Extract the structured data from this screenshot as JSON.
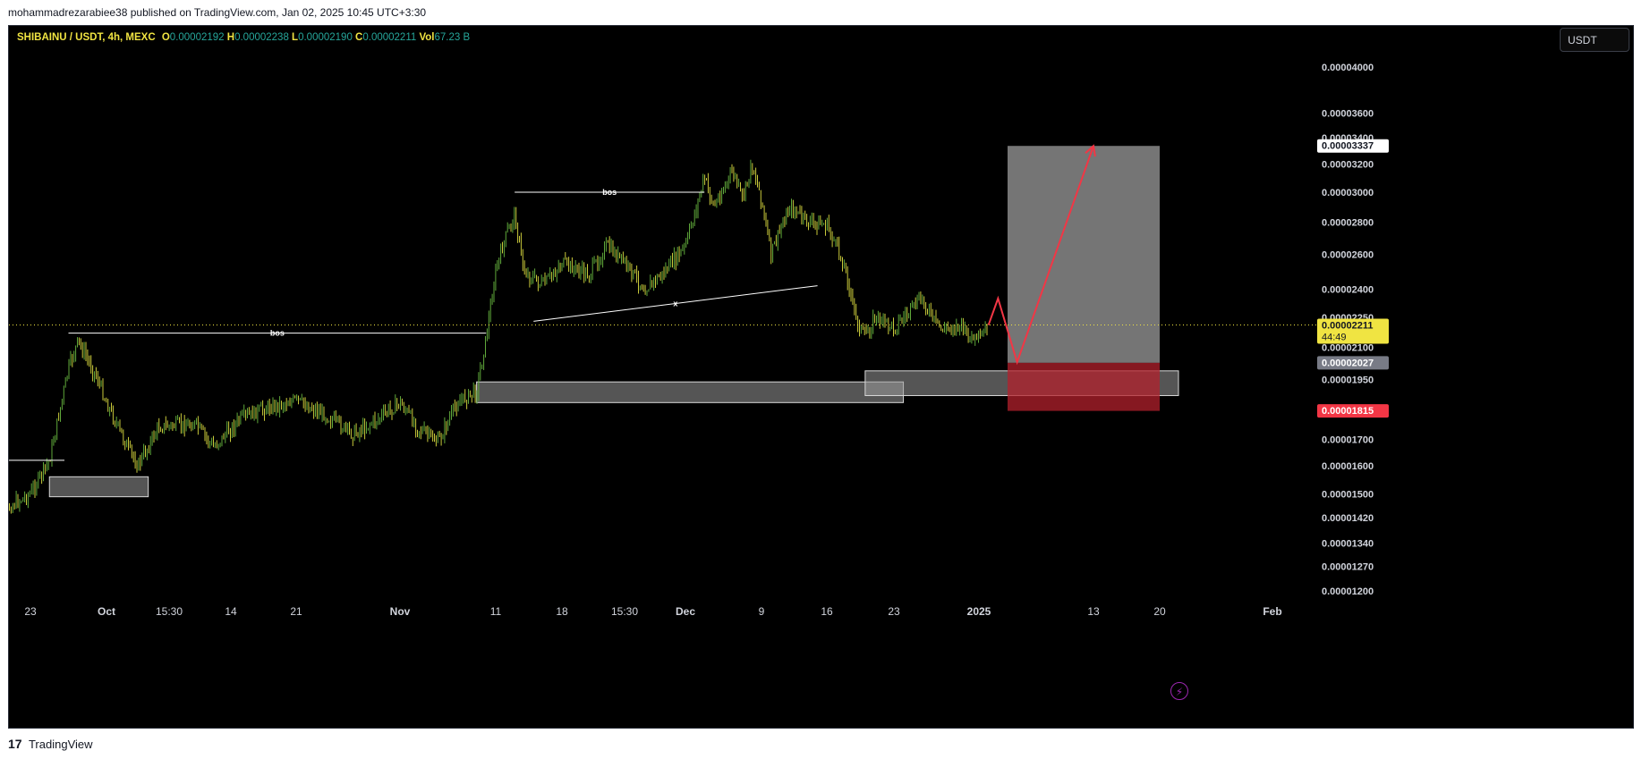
{
  "header": {
    "publish_line": "mohammadrezarabiee38 published on TradingView.com, Jan 02, 2025 10:45 UTC+3:30"
  },
  "legend": {
    "symbol": "SHIBAINU / USDT, 4h, MEXC",
    "o_label": "O",
    "o": "0.00002192",
    "h_label": "H",
    "h": "0.00002238",
    "l_label": "L",
    "l": "0.00002190",
    "c_label": "C",
    "c": "0.00002211",
    "vol_label": "Vol",
    "vol": "67.23 B"
  },
  "toolbar": {
    "currency": "USDT"
  },
  "footer": {
    "logo": "17",
    "brand": "TradingView"
  },
  "colors": {
    "background": "#000000",
    "candle": "#c9c93a",
    "candle_up": "#5fa83a",
    "current_price": "#f0e442",
    "stop_loss": "#f23645",
    "target_zone": "#8a8a8a",
    "arrow": "#f23645"
  },
  "icons": {
    "lightning": "lightning-icon",
    "logo": "tradingview-logo-icon"
  },
  "chart_data": {
    "type": "candlestick",
    "symbol": "SHIBAINU / USDT",
    "timeframe": "4h",
    "exchange": "MEXC",
    "x_ticks": [
      "23",
      "Oct",
      "15:30",
      "14",
      "21",
      "Nov",
      "11",
      "18",
      "15:30",
      "Dec",
      "9",
      "16",
      "23",
      "2025",
      "13",
      "20",
      "Feb"
    ],
    "x_dates": [
      "2024-09-23",
      "2024-10-01",
      "2024-10-07",
      "2024-10-14",
      "2024-10-21",
      "2024-11-01",
      "2024-11-11",
      "2024-11-18",
      "2024-11-25",
      "2024-12-01",
      "2024-12-09",
      "2024-12-16",
      "2024-12-23",
      "2025-01-01",
      "2025-01-13",
      "2025-01-20",
      "2025-02-01"
    ],
    "y_ticks": [
      "0.00004000",
      "0.00003600",
      "0.00003400",
      "0.00003200",
      "0.00003000",
      "0.00002800",
      "0.00002600",
      "0.00002400",
      "0.00002250",
      "0.00002100",
      "0.00001950",
      "0.00001700",
      "0.00001600",
      "0.00001500",
      "0.00001420",
      "0.00001340",
      "0.00001270",
      "0.00001200"
    ],
    "y_scale": "log",
    "price_series": [
      {
        "date": "2024-09-19",
        "close": 1.4e-05
      },
      {
        "date": "2024-09-21",
        "close": 1.46e-05
      },
      {
        "date": "2024-09-23",
        "close": 1.5e-05
      },
      {
        "date": "2024-09-25",
        "close": 1.62e-05
      },
      {
        "date": "2024-09-27",
        "close": 2e-05
      },
      {
        "date": "2024-09-28",
        "close": 2.13e-05
      },
      {
        "date": "2024-09-30",
        "close": 1.96e-05
      },
      {
        "date": "2024-10-01",
        "close": 1.85e-05
      },
      {
        "date": "2024-10-03",
        "close": 1.67e-05
      },
      {
        "date": "2024-10-04",
        "close": 1.6e-05
      },
      {
        "date": "2024-10-06",
        "close": 1.75e-05
      },
      {
        "date": "2024-10-10",
        "close": 1.76e-05
      },
      {
        "date": "2024-10-12",
        "close": 1.67e-05
      },
      {
        "date": "2024-10-15",
        "close": 1.78e-05
      },
      {
        "date": "2024-10-18",
        "close": 1.83e-05
      },
      {
        "date": "2024-10-21",
        "close": 1.86e-05
      },
      {
        "date": "2024-10-24",
        "close": 1.8e-05
      },
      {
        "date": "2024-10-27",
        "close": 1.72e-05
      },
      {
        "date": "2024-10-30",
        "close": 1.79e-05
      },
      {
        "date": "2024-11-01",
        "close": 1.85e-05
      },
      {
        "date": "2024-11-03",
        "close": 1.74e-05
      },
      {
        "date": "2024-11-05",
        "close": 1.69e-05
      },
      {
        "date": "2024-11-07",
        "close": 1.85e-05
      },
      {
        "date": "2024-11-09",
        "close": 1.9e-05
      },
      {
        "date": "2024-11-10",
        "close": 2.15e-05
      },
      {
        "date": "2024-11-11",
        "close": 2.5e-05
      },
      {
        "date": "2024-11-12",
        "close": 2.7e-05
      },
      {
        "date": "2024-11-13",
        "close": 2.85e-05
      },
      {
        "date": "2024-11-14",
        "close": 2.5e-05
      },
      {
        "date": "2024-11-16",
        "close": 2.42e-05
      },
      {
        "date": "2024-11-18",
        "close": 2.55e-05
      },
      {
        "date": "2024-11-21",
        "close": 2.48e-05
      },
      {
        "date": "2024-11-23",
        "close": 2.65e-05
      },
      {
        "date": "2024-11-25",
        "close": 2.55e-05
      },
      {
        "date": "2024-11-27",
        "close": 2.4e-05
      },
      {
        "date": "2024-11-29",
        "close": 2.5e-05
      },
      {
        "date": "2024-12-01",
        "close": 2.65e-05
      },
      {
        "date": "2024-12-03",
        "close": 3.1e-05
      },
      {
        "date": "2024-12-04",
        "close": 2.9e-05
      },
      {
        "date": "2024-12-06",
        "close": 3.15e-05
      },
      {
        "date": "2024-12-07",
        "close": 2.95e-05
      },
      {
        "date": "2024-12-08",
        "close": 3.2e-05
      },
      {
        "date": "2024-12-09",
        "close": 2.95e-05
      },
      {
        "date": "2024-12-10",
        "close": 2.6e-05
      },
      {
        "date": "2024-12-11",
        "close": 2.75e-05
      },
      {
        "date": "2024-12-12",
        "close": 2.9e-05
      },
      {
        "date": "2024-12-14",
        "close": 2.8e-05
      },
      {
        "date": "2024-12-16",
        "close": 2.78e-05
      },
      {
        "date": "2024-12-17",
        "close": 2.65e-05
      },
      {
        "date": "2024-12-18",
        "close": 2.5e-05
      },
      {
        "date": "2024-12-19",
        "close": 2.25e-05
      },
      {
        "date": "2024-12-20",
        "close": 2.15e-05
      },
      {
        "date": "2024-12-21",
        "close": 2.25e-05
      },
      {
        "date": "2024-12-23",
        "close": 2.2e-05
      },
      {
        "date": "2024-12-25",
        "close": 2.3e-05
      },
      {
        "date": "2024-12-26",
        "close": 2.35e-05
      },
      {
        "date": "2024-12-27",
        "close": 2.25e-05
      },
      {
        "date": "2024-12-28",
        "close": 2.19e-05
      },
      {
        "date": "2024-12-30",
        "close": 2.21e-05
      },
      {
        "date": "2024-12-31",
        "close": 2.15e-05
      },
      {
        "date": "2025-01-01",
        "close": 2.13e-05
      },
      {
        "date": "2025-01-02",
        "close": 2.211e-05
      }
    ],
    "current_price": {
      "value": "0.00002211",
      "countdown": "44:49"
    },
    "price_tags": [
      {
        "value": "0.00003337",
        "role": "target"
      },
      {
        "value": "0.00002211",
        "role": "last"
      },
      {
        "value": "0.00002027",
        "role": "entry"
      },
      {
        "value": "0.00001815",
        "role": "stop"
      }
    ],
    "annotations": [
      {
        "text": "bos",
        "price": 2.17e-05,
        "from": "2024-09-27",
        "to": "2024-11-10"
      },
      {
        "text": "bos",
        "price": 3e-05,
        "from": "2024-11-13",
        "to": "2024-12-03"
      },
      {
        "text": "x",
        "from": {
          "date": "2024-11-15",
          "price": 2.23e-05
        },
        "to": {
          "date": "2024-12-15",
          "price": 2.42e-05
        }
      }
    ],
    "zones": [
      {
        "from": "2024-09-25",
        "to": "2024-10-05",
        "top": 1.56e-05,
        "bottom": 1.49e-05
      },
      {
        "from": "2024-11-09",
        "to": "2024-12-24",
        "top": 1.94e-05,
        "bottom": 1.85e-05
      },
      {
        "from": "2024-12-20",
        "to": "2025-01-22",
        "top": 1.99e-05,
        "bottom": 1.88e-05
      }
    ],
    "position": {
      "side": "long",
      "from": "2025-01-04",
      "to": "2025-01-20",
      "entry": 2.027e-05,
      "target": 3.337e-05,
      "stop": 1.815e-05
    },
    "projection": [
      {
        "date": "2025-01-02",
        "price": 2.211e-05
      },
      {
        "date": "2025-01-03",
        "price": 2.35e-05
      },
      {
        "date": "2025-01-05",
        "price": 2.03e-05
      },
      {
        "date": "2025-01-13",
        "price": 3.337e-05
      }
    ]
  }
}
